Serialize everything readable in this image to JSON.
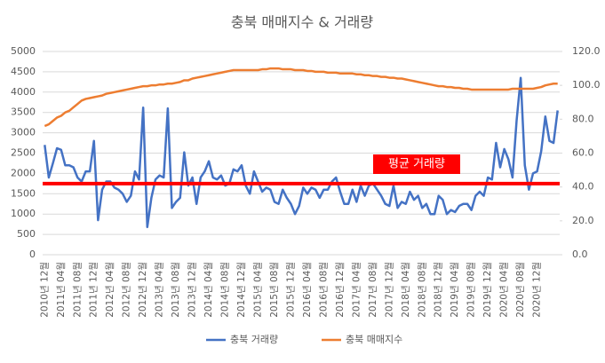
{
  "chart_data": {
    "type": "line",
    "title": "충북 매매지수 & 거래량",
    "categories": [
      "2010년 12월",
      null,
      null,
      null,
      "2011년 04월",
      null,
      null,
      null,
      "2011년 08월",
      null,
      null,
      null,
      "2011년 12월",
      null,
      null,
      null,
      "2012년 04월",
      null,
      null,
      null,
      "2012년 08월",
      null,
      null,
      null,
      "2012년 12월",
      null,
      null,
      null,
      "2013년 04월",
      null,
      null,
      null,
      "2013년 08월",
      null,
      null,
      null,
      "2013년 12월",
      null,
      null,
      null,
      "2014년 04월",
      null,
      null,
      null,
      "2014년 08월",
      null,
      null,
      null,
      "2014년 12월",
      null,
      null,
      null,
      "2015년 04월",
      null,
      null,
      null,
      "2015년 08월",
      null,
      null,
      null,
      "2015년 12월",
      null,
      null,
      null,
      "2016년 04월",
      null,
      null,
      null,
      "2016년 08월",
      null,
      null,
      null,
      "2016년 12월",
      null,
      null,
      null,
      "2017년 04월",
      null,
      null,
      null,
      "2017년 08월",
      null,
      null,
      null,
      "2017년 12월",
      null,
      null,
      null,
      "2018년 04월",
      null,
      null,
      null,
      "2018년 08월",
      null,
      null,
      null,
      "2018년 12월",
      null,
      null,
      null,
      "2019년 04월",
      null,
      null,
      null,
      "2019년 08월",
      null,
      null,
      null,
      "2019년 12월",
      null,
      null,
      null,
      "2020년 04월",
      null,
      null,
      null,
      "2020년 08월",
      null,
      null,
      null,
      "2020년 12월",
      null,
      null,
      null,
      null,
      null
    ],
    "series": [
      {
        "name": "충북 거래량",
        "color": "#4472c4",
        "values": [
          2700,
          1900,
          2250,
          2620,
          2580,
          2200,
          2200,
          2150,
          1900,
          1800,
          2050,
          2050,
          2800,
          850,
          1600,
          1800,
          1800,
          1650,
          1600,
          1500,
          1300,
          1450,
          2050,
          1850,
          3620,
          680,
          1400,
          1850,
          1950,
          1900,
          3600,
          1150,
          1300,
          1400,
          2520,
          1700,
          1900,
          1250,
          1900,
          2050,
          2300,
          1900,
          1850,
          1950,
          1700,
          1750,
          2100,
          2050,
          2200,
          1700,
          1500,
          2050,
          1800,
          1550,
          1650,
          1600,
          1300,
          1250,
          1600,
          1400,
          1250,
          1000,
          1200,
          1650,
          1500,
          1650,
          1600,
          1400,
          1600,
          1600,
          1800,
          1900,
          1550,
          1250,
          1250,
          1600,
          1300,
          1700,
          1450,
          1700,
          1750,
          1600,
          1450,
          1250,
          1200,
          1700,
          1150,
          1300,
          1250,
          1550,
          1350,
          1450,
          1150,
          1250,
          1000,
          1000,
          1450,
          1350,
          1000,
          1100,
          1050,
          1200,
          1250,
          1250,
          1100,
          1450,
          1550,
          1450,
          1900,
          1850,
          2750,
          2150,
          2600,
          2350,
          1900,
          3300,
          4350,
          2200,
          1600,
          2000,
          2050,
          2550,
          3400,
          2800,
          2750,
          3550
        ]
      },
      {
        "name": "충북 매매지수",
        "color": "#ed7d31",
        "axis": "y2",
        "values": [
          76,
          77,
          79,
          81,
          82,
          84,
          85,
          87,
          89,
          91,
          92,
          92.5,
          93,
          93.5,
          94,
          95,
          95.5,
          96,
          96.5,
          97,
          97.5,
          98,
          98.5,
          99,
          99.5,
          99.5,
          100,
          100,
          100.5,
          100.5,
          101,
          101,
          101.5,
          102,
          103,
          103,
          104,
          104.5,
          105,
          105.5,
          106,
          106.5,
          107,
          107.5,
          108,
          108.5,
          109,
          109,
          109,
          109,
          109,
          109,
          109,
          109.5,
          109.5,
          110,
          110,
          110,
          109.5,
          109.5,
          109.5,
          109,
          109,
          109,
          108.5,
          108.5,
          108,
          108,
          108,
          107.5,
          107.5,
          107.5,
          107,
          107,
          107,
          107,
          106.5,
          106.5,
          106,
          106,
          105.5,
          105.5,
          105,
          105,
          104.5,
          104.5,
          104,
          104,
          103.5,
          103,
          102.5,
          102,
          101.5,
          101,
          100.5,
          100,
          99.5,
          99.5,
          99,
          99,
          98.5,
          98.5,
          98,
          98,
          97.5,
          97.5,
          97.5,
          97.5,
          97.5,
          97.5,
          97.5,
          97.5,
          97.5,
          97.5,
          98,
          98,
          98,
          98,
          98,
          98,
          98.5,
          99,
          100,
          100.5,
          101,
          101
        ]
      }
    ],
    "ylim": [
      0,
      5000
    ],
    "yticks": [
      0,
      500,
      1000,
      1500,
      2000,
      2500,
      3000,
      3500,
      4000,
      4500,
      5000
    ],
    "y2lim": [
      0,
      120
    ],
    "y2ticks": [
      {
        "value": 0,
        "label": "0.0"
      },
      {
        "value": 20,
        "label": "20.0"
      },
      {
        "value": 40,
        "label": "40.0"
      },
      {
        "value": 60,
        "label": "60.0"
      },
      {
        "value": 80,
        "label": "80.0"
      },
      {
        "value": 100,
        "label": "100.0"
      },
      {
        "value": 120,
        "label": "120.0"
      }
    ],
    "grid": true,
    "legend": "bottom",
    "average_line": {
      "value": 1750,
      "label": "평균 거래량",
      "color": "#ff0000"
    }
  }
}
